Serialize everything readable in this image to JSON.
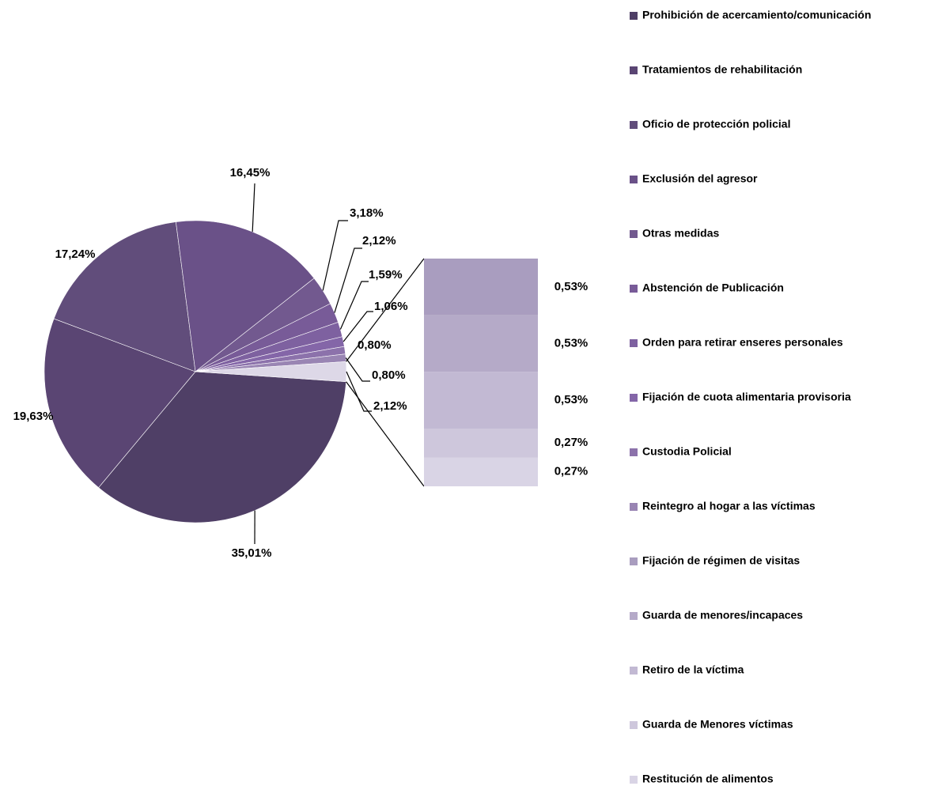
{
  "chart_data": {
    "type": "pie-of-bar",
    "categories": [
      "Prohibición de acercamiento/comunicación",
      "Tratamientos de rehabilitación",
      "Oficio de protección policial",
      "Exclusión del agresor",
      "Otras medidas",
      "Abstención de Publicación",
      "Orden para retirar enseres personales",
      "Fijación de cuota alimentaria provisoria",
      "Custodia Policial",
      "Reintegro al hogar a las víctimas",
      "Fijación de régimen de visitas",
      "Guarda de menores/incapaces",
      "Retiro de la víctima",
      "Guarda de Menores víctimas",
      "Restitución de alimentos"
    ],
    "values": [
      35.01,
      19.63,
      17.24,
      16.45,
      3.18,
      2.12,
      1.59,
      1.06,
      0.8,
      0.8,
      0.53,
      0.53,
      0.53,
      0.27,
      0.27
    ],
    "value_labels": [
      "35,01%",
      "19,63%",
      "17,24%",
      "16,45%",
      "3,18%",
      "2,12%",
      "1,59%",
      "1,06%",
      "0,80%",
      "0,80%",
      "0,53%",
      "0,53%",
      "0,53%",
      "0,27%",
      "0,27%"
    ],
    "colors": [
      "#4f3f66",
      "#5a4573",
      "#614d7b",
      "#6a5188",
      "#72598f",
      "#785b98",
      "#7e61a0",
      "#8466a8",
      "#8c72ab",
      "#9985b3",
      "#a99dbf",
      "#b5aac8",
      "#c2b9d3",
      "#cec7dc",
      "#d9d4e5"
    ],
    "bar_count": 5,
    "other_value": 2.12,
    "other_label": "2,12%",
    "other_color": "#ddd8e7",
    "legend": "right"
  }
}
